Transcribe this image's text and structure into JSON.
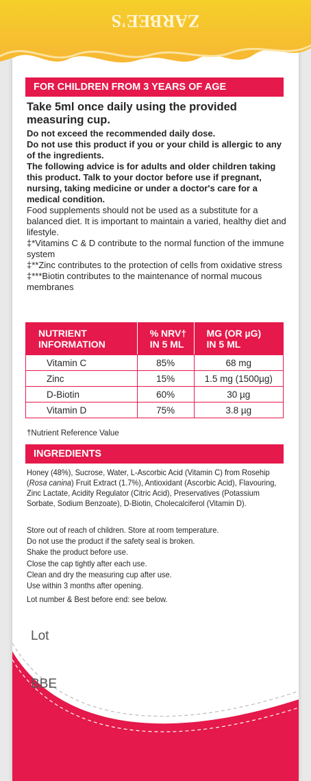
{
  "brand": "ZARBEE'S",
  "age_banner": "FOR CHILDREN FROM 3 YEARS OF AGE",
  "directions": "Take 5ml once daily using the provided measuring cup.",
  "warnings": [
    "Do not exceed the recommended daily dose.",
    "Do not use this product if you or your child is allergic to any of the ingredients.",
    "The following advice is for adults and older children taking this product.  Talk to your doctor before use if pregnant, nursing, taking medicine or under a doctor's care for a medical condition."
  ],
  "notes": [
    "Food supplements should not be used as a substitute for a balanced diet. It is important to maintain a varied, healthy diet and lifestyle.",
    "‡*Vitamins C & D contribute to the normal function of the immune system",
    "‡**Zinc contributes to the protection of cells from oxidative stress",
    "‡***Biotin contributes to the maintenance of normal mucous membranes"
  ],
  "table": {
    "header": [
      [
        "NUTRIENT",
        "INFORMATION"
      ],
      [
        "% NRV†",
        "IN 5 ML"
      ],
      [
        "MG (OR µG)",
        "IN 5 ML"
      ]
    ],
    "rows": [
      [
        "Vitamin C",
        "85%",
        "68 mg"
      ],
      [
        "Zinc",
        "15%",
        "1.5 mg (1500µg)"
      ],
      [
        "D-Biotin",
        "60%",
        "30 µg"
      ],
      [
        "Vitamin D",
        "75%",
        "3.8 µg"
      ]
    ]
  },
  "table_footnote": "†Nutrient Reference Value",
  "ingredients": {
    "title": "INGREDIENTS",
    "text_before": "Honey (48%), Sucrose, Water, L-Ascorbic Acid (Vitamin C) from Rosehip (",
    "latin": "Rosa canina",
    "text_after": ") Fruit Extract (1.7%), Antioxidant (Ascorbic Acid), Flavouring, Zinc Lactate, Acidity Regulator (Citric Acid), Preservatives (Potassium Sorbate, Sodium Benzoate), D-Biotin, Cholecalciferol (Vitamin D)."
  },
  "storage": [
    "Store out of reach of children. Store at room temperature.",
    "Do not use the product if the safety seal is broken.",
    "Shake the product before use.",
    "Close the cap tightly after each use.",
    "Clean and dry the measuring cup after use.",
    "Use within 3 months after opening.",
    "Lot number & Best before end: see below."
  ],
  "lot_label": "Lot",
  "bbe_label": "BBE"
}
